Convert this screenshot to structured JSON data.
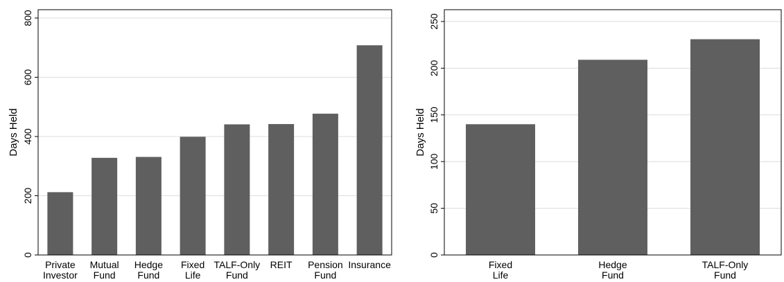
{
  "chart_data": [
    {
      "type": "bar",
      "categories": [
        [
          "Private",
          "Investor"
        ],
        [
          "Mutual",
          "Fund"
        ],
        [
          "Hedge",
          "Fund"
        ],
        [
          "Fixed",
          "Life"
        ],
        [
          "TALF-Only",
          "Fund"
        ],
        [
          "REIT"
        ],
        [
          "Pension",
          "Fund"
        ],
        [
          "Insurance"
        ]
      ],
      "values": [
        212,
        328,
        331,
        399,
        441,
        442,
        477,
        708
      ],
      "ylabel": "Days Held",
      "xlabel": "",
      "ylim": [
        0,
        800
      ],
      "yticks": [
        0,
        200,
        400,
        600,
        800
      ],
      "grid": true,
      "bar_color": "#5f5f5f"
    },
    {
      "type": "bar",
      "categories": [
        [
          "Fixed",
          "Life"
        ],
        [
          "Hedge",
          "Fund"
        ],
        [
          "TALF-Only",
          "Fund"
        ]
      ],
      "values": [
        140,
        209,
        231
      ],
      "ylabel": "Days Held",
      "xlabel": "",
      "ylim": [
        0,
        250
      ],
      "yticks": [
        0,
        50,
        100,
        150,
        200,
        250
      ],
      "grid": true,
      "bar_color": "#5f5f5f"
    }
  ]
}
